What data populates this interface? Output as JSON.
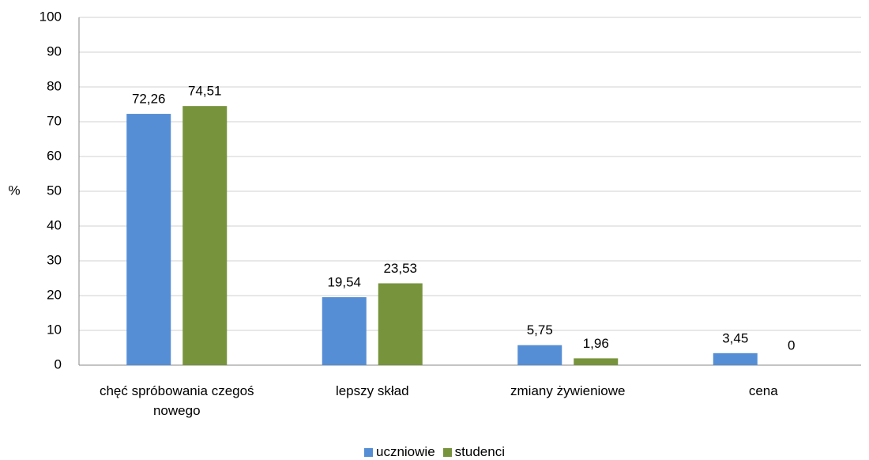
{
  "chart_data": {
    "type": "bar",
    "y_label": "%",
    "categories": [
      "chęć spróbowania czegoś nowego",
      "lepszy skład",
      "zmiany żywieniowe",
      "cena"
    ],
    "series": [
      {
        "name": "uczniowie",
        "color": "#558ed5",
        "values": [
          72.26,
          19.54,
          5.75,
          3.45
        ],
        "value_labels": [
          "72,26",
          "19,54",
          "5,75",
          "3,45"
        ]
      },
      {
        "name": "studenci",
        "color": "#77933c",
        "values": [
          74.51,
          23.53,
          1.96,
          0
        ],
        "value_labels": [
          "74,51",
          "23,53",
          "1,96",
          "0"
        ]
      }
    ],
    "ylim": [
      0,
      100
    ],
    "yticks": [
      0,
      10,
      20,
      30,
      40,
      50,
      60,
      70,
      80,
      90,
      100
    ],
    "grid": true,
    "legend": "bottom"
  }
}
